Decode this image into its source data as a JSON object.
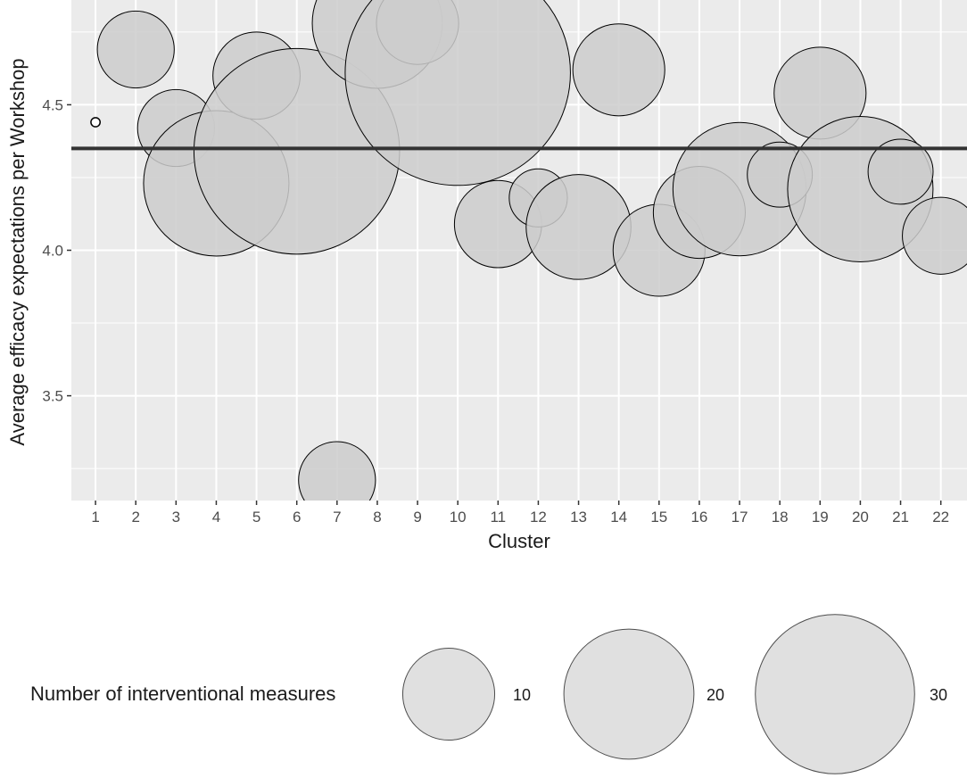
{
  "chart_data": {
    "type": "scatter",
    "title": "",
    "xlabel": "Cluster",
    "ylabel": "Average efficacy expectations per Workshop",
    "xlim": [
      0.4,
      22.65
    ],
    "ylim": [
      3.14,
      4.86
    ],
    "x_ticks": [
      1,
      2,
      3,
      4,
      5,
      6,
      7,
      8,
      9,
      10,
      11,
      12,
      13,
      14,
      15,
      16,
      17,
      18,
      19,
      20,
      21,
      22
    ],
    "y_ticks": [
      3.5,
      4.0,
      4.5
    ],
    "y_tick_labels": [
      "3.5",
      "4.0",
      "4.5"
    ],
    "grid": true,
    "reference_line": {
      "y": 4.35,
      "color": "#333333"
    },
    "colors": {
      "panel": "#ebebeb",
      "grid": "#ffffff",
      "bubble_fill": "#cccccc",
      "bubble_stroke": "#000000",
      "legend_fill": "#e0e0e0",
      "legend_stroke": "#4d4d4d"
    },
    "points": [
      {
        "x": 1,
        "y": 4.44,
        "size": 0.1
      },
      {
        "x": 2,
        "y": 4.69,
        "size": 7
      },
      {
        "x": 3,
        "y": 4.42,
        "size": 7
      },
      {
        "x": 4,
        "y": 4.23,
        "size": 25
      },
      {
        "x": 5,
        "y": 4.6,
        "size": 9
      },
      {
        "x": 6,
        "y": 4.34,
        "size": 50
      },
      {
        "x": 7,
        "y": 3.21,
        "size": 7
      },
      {
        "x": 8,
        "y": 4.78,
        "size": 20
      },
      {
        "x": 9,
        "y": 4.78,
        "size": 8
      },
      {
        "x": 10,
        "y": 4.61,
        "size": 60
      },
      {
        "x": 11,
        "y": 4.09,
        "size": 9
      },
      {
        "x": 12,
        "y": 4.18,
        "size": 4
      },
      {
        "x": 13,
        "y": 4.08,
        "size": 13
      },
      {
        "x": 14,
        "y": 4.62,
        "size": 10
      },
      {
        "x": 15,
        "y": 4.0,
        "size": 10
      },
      {
        "x": 16,
        "y": 4.13,
        "size": 10
      },
      {
        "x": 17,
        "y": 4.21,
        "size": 21
      },
      {
        "x": 18,
        "y": 4.26,
        "size": 5
      },
      {
        "x": 19,
        "y": 4.54,
        "size": 10
      },
      {
        "x": 20,
        "y": 4.21,
        "size": 25
      },
      {
        "x": 21,
        "y": 4.27,
        "size": 5
      },
      {
        "x": 22,
        "y": 4.05,
        "size": 7
      }
    ],
    "legend": {
      "title": "Number of interventional measures",
      "placement": "bottom",
      "entries": [
        {
          "size": 10,
          "label": "10"
        },
        {
          "size": 20,
          "label": "20"
        },
        {
          "size": 30,
          "label": "30"
        }
      ]
    }
  }
}
